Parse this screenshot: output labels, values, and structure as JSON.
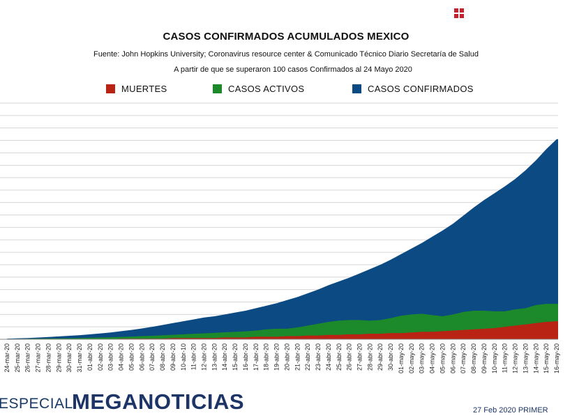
{
  "header": {
    "title": "CASOS CONFIRMADOS ACUMULADOS MEXICO",
    "subtitle": "Fuente: John Hopkins University; Coronavirus resource center & Comunicado Técnico Diario Secretaría de Salud",
    "subtitle2": "A partir de que se superaron 100 casos Confirmados al 24 Mayo 2020"
  },
  "legend": {
    "deaths": "MUERTES",
    "active": "CASOS ACTIVOS",
    "confirmed": "CASOS CONFIRMADOS"
  },
  "colors": {
    "deaths": "#b82313",
    "active": "#1c8a2a",
    "confirmed": "#0b4a82",
    "grid": "#d6d6d6",
    "brand_navy": "#1d3466",
    "brand_red": "#c8202c"
  },
  "footer": {
    "especial": "ESPECIAL",
    "brand": "MEGANOTICIAS",
    "date": "27 Feb 2020 PRIMER"
  },
  "chart_data": {
    "type": "area",
    "title": "CASOS CONFIRMADOS ACUMULADOS MEXICO",
    "xlabel": "",
    "ylabel": "",
    "ylim": [
      0,
      19
    ],
    "grid": true,
    "legend_position": "top",
    "x": [
      "24-mar-20",
      "25-mar-20",
      "26-mar-20",
      "27-mar-20",
      "28-mar-20",
      "29-mar-20",
      "30-mar-20",
      "31-mar-20",
      "01-abr-20",
      "02-abr-20",
      "03-abr-20",
      "04-abr-20",
      "05-abr-20",
      "06-abr-20",
      "07-abr-20",
      "08-abr-20",
      "09-abr-20",
      "10-abr-10",
      "11-abr-20",
      "12-abr-20",
      "13-abr-20",
      "14-abr-20",
      "15-abr-20",
      "16-abr-20",
      "17-abr-20",
      "18-abr-20",
      "19-abr-20",
      "20-abr-20",
      "21-abr-20",
      "22-abr-20",
      "23-abr-20",
      "24-abr-20",
      "25-abr-20",
      "26-abr-20",
      "27-abr-20",
      "28-abr-20",
      "29-abr-20",
      "30-abr-20",
      "01-may-20",
      "02-may-20",
      "03-may-20",
      "04-may-20",
      "05-may-20",
      "06-may-20",
      "07-may-20",
      "08-may-20",
      "09-may-20",
      "10-may-20",
      "11-may-20",
      "12-may-20",
      "13-may-20",
      "14-may-20",
      "15-may-20",
      "16-may-20"
    ],
    "series": [
      {
        "name": "MUERTES",
        "values": [
          0,
          0,
          0,
          0,
          0,
          0,
          0,
          0,
          0,
          0,
          0,
          0.05,
          0.05,
          0.05,
          0.05,
          0.05,
          0.1,
          0.1,
          0.1,
          0.1,
          0.1,
          0.15,
          0.15,
          0.15,
          0.2,
          0.2,
          0.2,
          0.25,
          0.25,
          0.3,
          0.3,
          0.35,
          0.35,
          0.4,
          0.4,
          0.45,
          0.45,
          0.5,
          0.5,
          0.55,
          0.6,
          0.6,
          0.65,
          0.7,
          0.75,
          0.8,
          0.85,
          0.9,
          1.0,
          1.1,
          1.2,
          1.3,
          1.4,
          1.45
        ]
      },
      {
        "name": "CASOS ACTIVOS",
        "values": [
          0.02,
          0.03,
          0.04,
          0.05,
          0.06,
          0.07,
          0.08,
          0.1,
          0.12,
          0.14,
          0.16,
          0.19,
          0.22,
          0.25,
          0.28,
          0.32,
          0.36,
          0.4,
          0.44,
          0.48,
          0.52,
          0.56,
          0.6,
          0.64,
          0.7,
          0.8,
          0.85,
          0.85,
          0.95,
          1.1,
          1.25,
          1.4,
          1.5,
          1.55,
          1.55,
          1.5,
          1.55,
          1.7,
          1.9,
          2.0,
          2.05,
          1.95,
          1.85,
          2.0,
          2.2,
          2.3,
          2.3,
          2.25,
          2.25,
          2.4,
          2.5,
          2.75,
          2.85,
          2.85
        ]
      },
      {
        "name": "CASOS CONFIRMADOS",
        "values": [
          0.05,
          0.08,
          0.1,
          0.14,
          0.18,
          0.23,
          0.28,
          0.33,
          0.4,
          0.47,
          0.55,
          0.65,
          0.75,
          0.87,
          1.0,
          1.15,
          1.3,
          1.45,
          1.6,
          1.75,
          1.85,
          2.0,
          2.15,
          2.3,
          2.5,
          2.7,
          2.9,
          3.15,
          3.4,
          3.7,
          4.0,
          4.35,
          4.65,
          4.95,
          5.3,
          5.65,
          6.0,
          6.4,
          6.85,
          7.3,
          7.75,
          8.25,
          8.75,
          9.3,
          9.95,
          10.6,
          11.2,
          11.75,
          12.3,
          12.9,
          13.6,
          14.4,
          15.3,
          16.1
        ]
      }
    ]
  }
}
